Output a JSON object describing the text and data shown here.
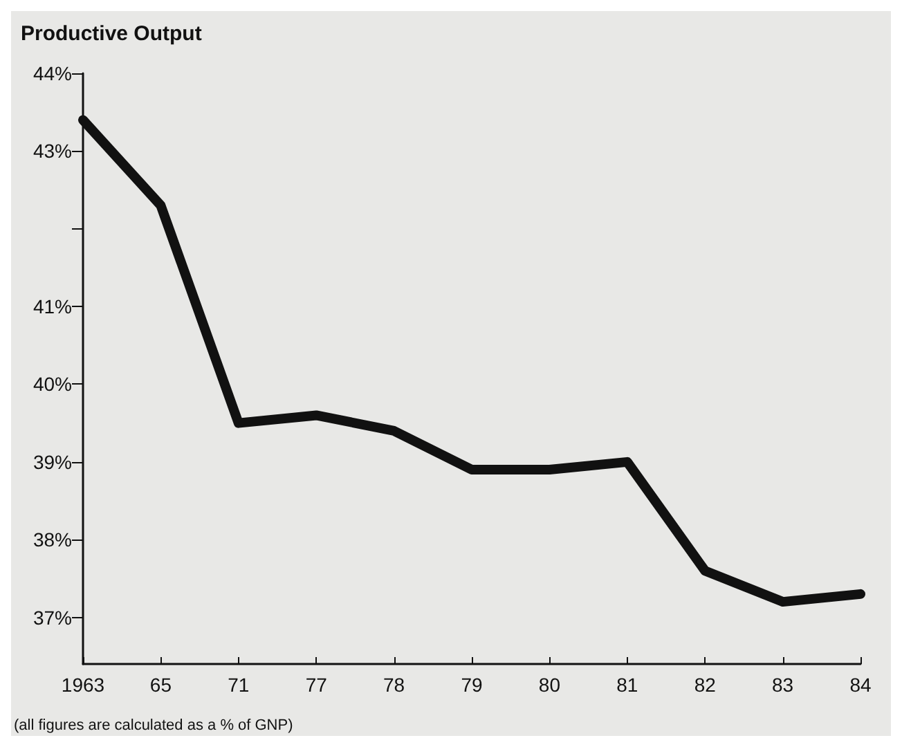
{
  "chart_data": {
    "type": "line",
    "title": "Productive Output",
    "annotations": [
      "(all figures are calculated as a % of GNP)"
    ],
    "categories": [
      "1963",
      "65",
      "71",
      "77",
      "78",
      "79",
      "80",
      "81",
      "82",
      "83",
      "84"
    ],
    "series": [
      {
        "color": "#111111",
        "values": [
          43.4,
          42.3,
          39.5,
          39.6,
          39.4,
          38.9,
          38.9,
          39.0,
          37.6,
          37.2,
          37.3
        ]
      }
    ],
    "ylim": [
      36.4,
      44
    ],
    "yticks": [
      {
        "value": 37,
        "label": "37%"
      },
      {
        "value": 38,
        "label": "38%"
      },
      {
        "value": 39,
        "label": "39%"
      },
      {
        "value": 40,
        "label": "40%"
      },
      {
        "value": 41,
        "label": "41%"
      },
      {
        "value": 42,
        "label": null
      },
      {
        "value": 43,
        "label": "43%"
      },
      {
        "value": 44,
        "label": "44%"
      }
    ],
    "grid": false,
    "line_style": "solid"
  }
}
